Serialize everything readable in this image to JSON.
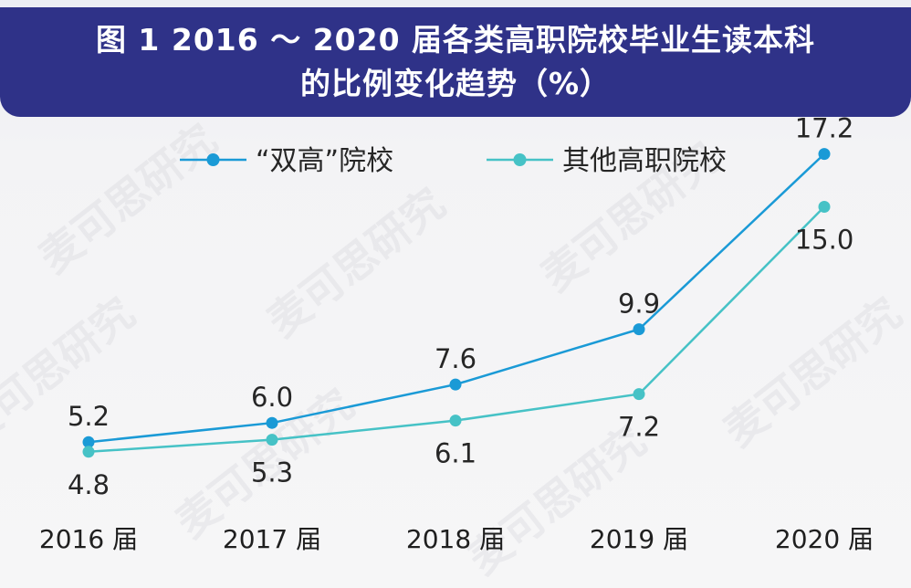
{
  "title": {
    "line1": "图 1  2016 ～ 2020 届各类高职院校毕业生读本科",
    "line2": "的比例变化趋势（%）"
  },
  "watermark": "麦可思研究",
  "colors": {
    "header_bg": "#2f3288",
    "series_1": "#1a9ad6",
    "series_2": "#46c2c6"
  },
  "chart_data": {
    "type": "line",
    "categories": [
      "2016 届",
      "2017 届",
      "2018 届",
      "2019 届",
      "2020 届"
    ],
    "series": [
      {
        "name": "“双高”院校",
        "values": [
          5.2,
          6.0,
          7.6,
          9.9,
          17.2
        ],
        "labels": [
          "5.2",
          "6.0",
          "7.6",
          "9.9",
          "17.2"
        ]
      },
      {
        "name": "其他高职院校",
        "values": [
          4.8,
          5.3,
          6.1,
          7.2,
          15.0
        ],
        "labels": [
          "4.8",
          "5.3",
          "6.1",
          "7.2",
          "15.0"
        ]
      }
    ],
    "ylim": [
      0,
      20
    ],
    "grid": false,
    "legend_position": "top-left"
  }
}
